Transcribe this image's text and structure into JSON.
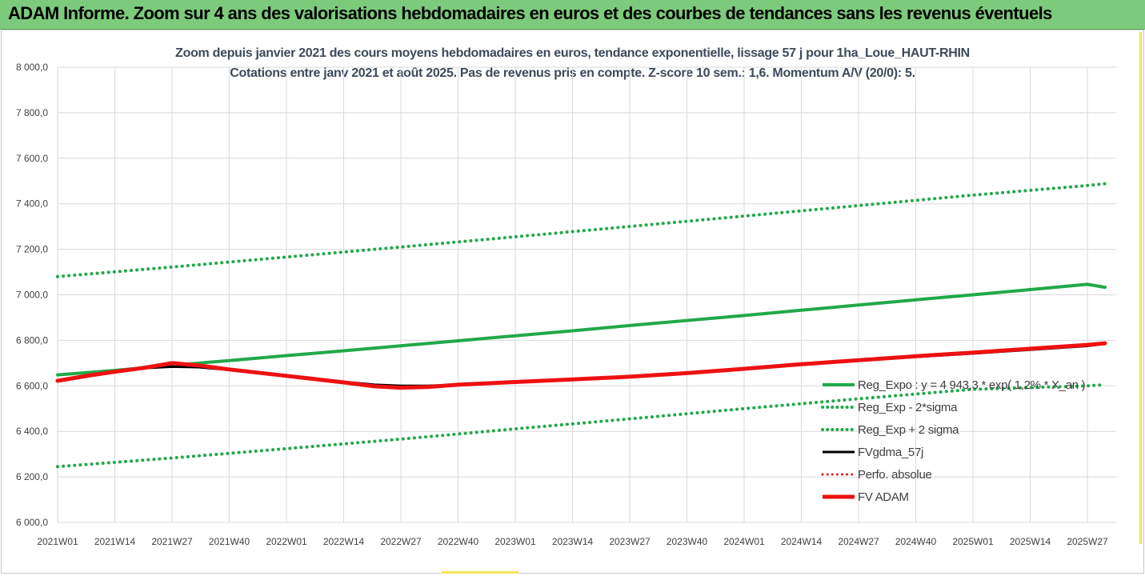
{
  "header": {
    "title": "ADAM Informe. Zoom sur 4 ans des valorisations hebdomadaires en euros et des courbes de tendances sans les revenus éventuels"
  },
  "chart_data": {
    "type": "line",
    "title_line1": "Zoom depuis janvier 2021 des cours moyens hebdomadaires en euros, tendance exponentielle, lissage 57 j pour 1ha_Loue_HAUT-RHIN",
    "title_line2": "Cotations entre janv 2021 et août 2025.  Pas de revenus pris en compte. Z-score 10 sem.: 1,6. Momentum A/V (20/0): 5.",
    "xlabel": "",
    "ylabel": "",
    "ylim": [
      6000,
      8000
    ],
    "y_ticks": [
      "6 000,0",
      "6 200,0",
      "6 400,0",
      "6 600,0",
      "6 800,0",
      "7 000,0",
      "7 200,0",
      "7 400,0",
      "7 600,0",
      "7 800,0",
      "8 000,0"
    ],
    "x_ticks": [
      "2021W01",
      "2021W14",
      "2021W27",
      "2021W40",
      "2022W01",
      "2022W14",
      "2022W27",
      "2022W40",
      "2023W01",
      "2023W14",
      "2023W27",
      "2023W40",
      "2024W01",
      "2024W14",
      "2024W27",
      "2024W40",
      "2025W01",
      "2025W14",
      "2025W27"
    ],
    "grid": true,
    "legend_position": "bottom-right",
    "series": [
      {
        "name": "Reg_Expo : y = 4 943,3 * exp( 1,2% * X_an )",
        "color": "#22a84a",
        "style": "solid",
        "x": [
          "2021W01",
          "2021W14",
          "2021W27",
          "2021W40",
          "2022W01",
          "2022W14",
          "2022W27",
          "2022W40",
          "2023W01",
          "2023W14",
          "2023W27",
          "2023W40",
          "2024W01",
          "2024W14",
          "2024W27",
          "2024W40",
          "2025W01",
          "2025W14",
          "2025W27",
          "2025W31"
        ],
        "values": [
          6648,
          6668,
          6690,
          6711,
          6733,
          6754,
          6776,
          6798,
          6820,
          6842,
          6865,
          6887,
          6909,
          6932,
          6955,
          6978,
          7000,
          7023,
          7046,
          7033
        ]
      },
      {
        "name": "Reg_Exp - 2*sigma",
        "color": "#22a84a",
        "style": "dotted",
        "x": [
          "2021W01",
          "2021W27",
          "2022W01",
          "2022W27",
          "2023W01",
          "2023W27",
          "2024W01",
          "2024W27",
          "2025W01",
          "2025W27",
          "2025W31"
        ],
        "values": [
          6245,
          6283,
          6324,
          6366,
          6411,
          6455,
          6500,
          6543,
          6585,
          6600,
          6605
        ]
      },
      {
        "name": "Reg_Exp + 2 sigma",
        "color": "#22a84a",
        "style": "dotted",
        "x": [
          "2021W01",
          "2021W27",
          "2022W01",
          "2022W27",
          "2023W01",
          "2023W27",
          "2024W01",
          "2024W27",
          "2025W01",
          "2025W27",
          "2025W31"
        ],
        "values": [
          7080,
          7122,
          7166,
          7210,
          7255,
          7300,
          7346,
          7392,
          7438,
          7480,
          7488
        ]
      },
      {
        "name": "FVgdma_57j",
        "color": "#000000",
        "style": "solid",
        "x": [
          "2021W01",
          "2021W14",
          "2021W21",
          "2021W27",
          "2021W33",
          "2021W40",
          "2022W01",
          "2022W14",
          "2022W21",
          "2022W27",
          "2022W33",
          "2022W40",
          "2023W01",
          "2023W27",
          "2024W01",
          "2024W27",
          "2025W01",
          "2025W27",
          "2025W31"
        ],
        "values": [
          6625,
          6660,
          6678,
          6684,
          6682,
          6670,
          6645,
          6618,
          6605,
          6600,
          6600,
          6605,
          6615,
          6640,
          6675,
          6712,
          6742,
          6775,
          6785
        ]
      },
      {
        "name": "Perfo. absolue",
        "color": "#e02020",
        "style": "dotted",
        "x": [],
        "values": []
      },
      {
        "name": "FV ADAM",
        "color": "#ee1111",
        "style": "solid",
        "x": [
          "2021W01",
          "2021W08",
          "2021W14",
          "2021W21",
          "2021W27",
          "2021W33",
          "2021W40",
          "2022W01",
          "2022W14",
          "2022W21",
          "2022W27",
          "2022W33",
          "2022W40",
          "2023W01",
          "2023W14",
          "2023W27",
          "2023W40",
          "2024W01",
          "2024W14",
          "2024W27",
          "2024W40",
          "2025W01",
          "2025W14",
          "2025W27",
          "2025W31"
        ],
        "values": [
          6622,
          6645,
          6662,
          6680,
          6700,
          6690,
          6672,
          6644,
          6615,
          6598,
          6592,
          6595,
          6605,
          6617,
          6628,
          6640,
          6656,
          6675,
          6695,
          6713,
          6730,
          6746,
          6763,
          6780,
          6787
        ]
      }
    ]
  }
}
